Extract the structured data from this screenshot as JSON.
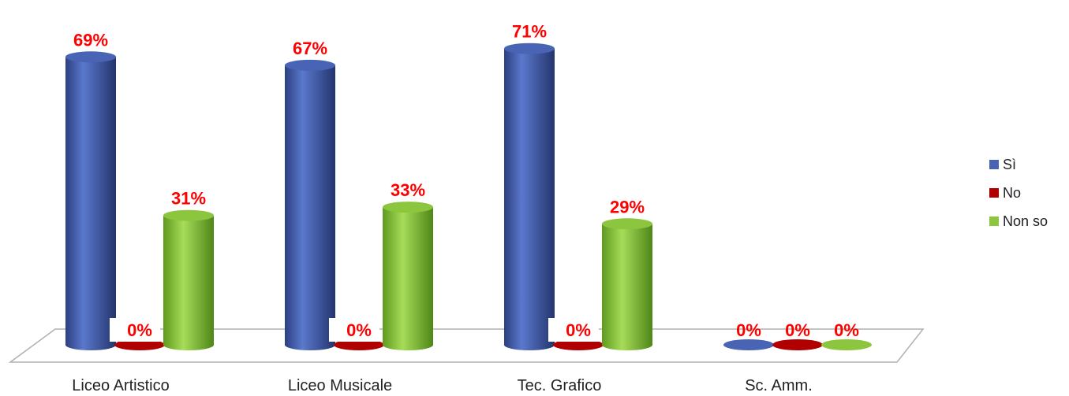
{
  "chart_data": {
    "type": "bar",
    "categories": [
      "Liceo Artistico",
      "Liceo Musicale",
      "Tec.  Grafico",
      "Sc. Amm."
    ],
    "series": [
      {
        "name": "Sì",
        "values": [
          69,
          67,
          71,
          0
        ],
        "color": "#4a64b5"
      },
      {
        "name": "No",
        "values": [
          0,
          0,
          0,
          0
        ],
        "color": "#b00000"
      },
      {
        "name": "Non so",
        "values": [
          31,
          33,
          29,
          0
        ],
        "color": "#8cc63f"
      }
    ],
    "value_suffix": "%",
    "ylim": [
      0,
      100
    ],
    "legend": "right",
    "grid": false,
    "style": "3d-cylinder"
  }
}
